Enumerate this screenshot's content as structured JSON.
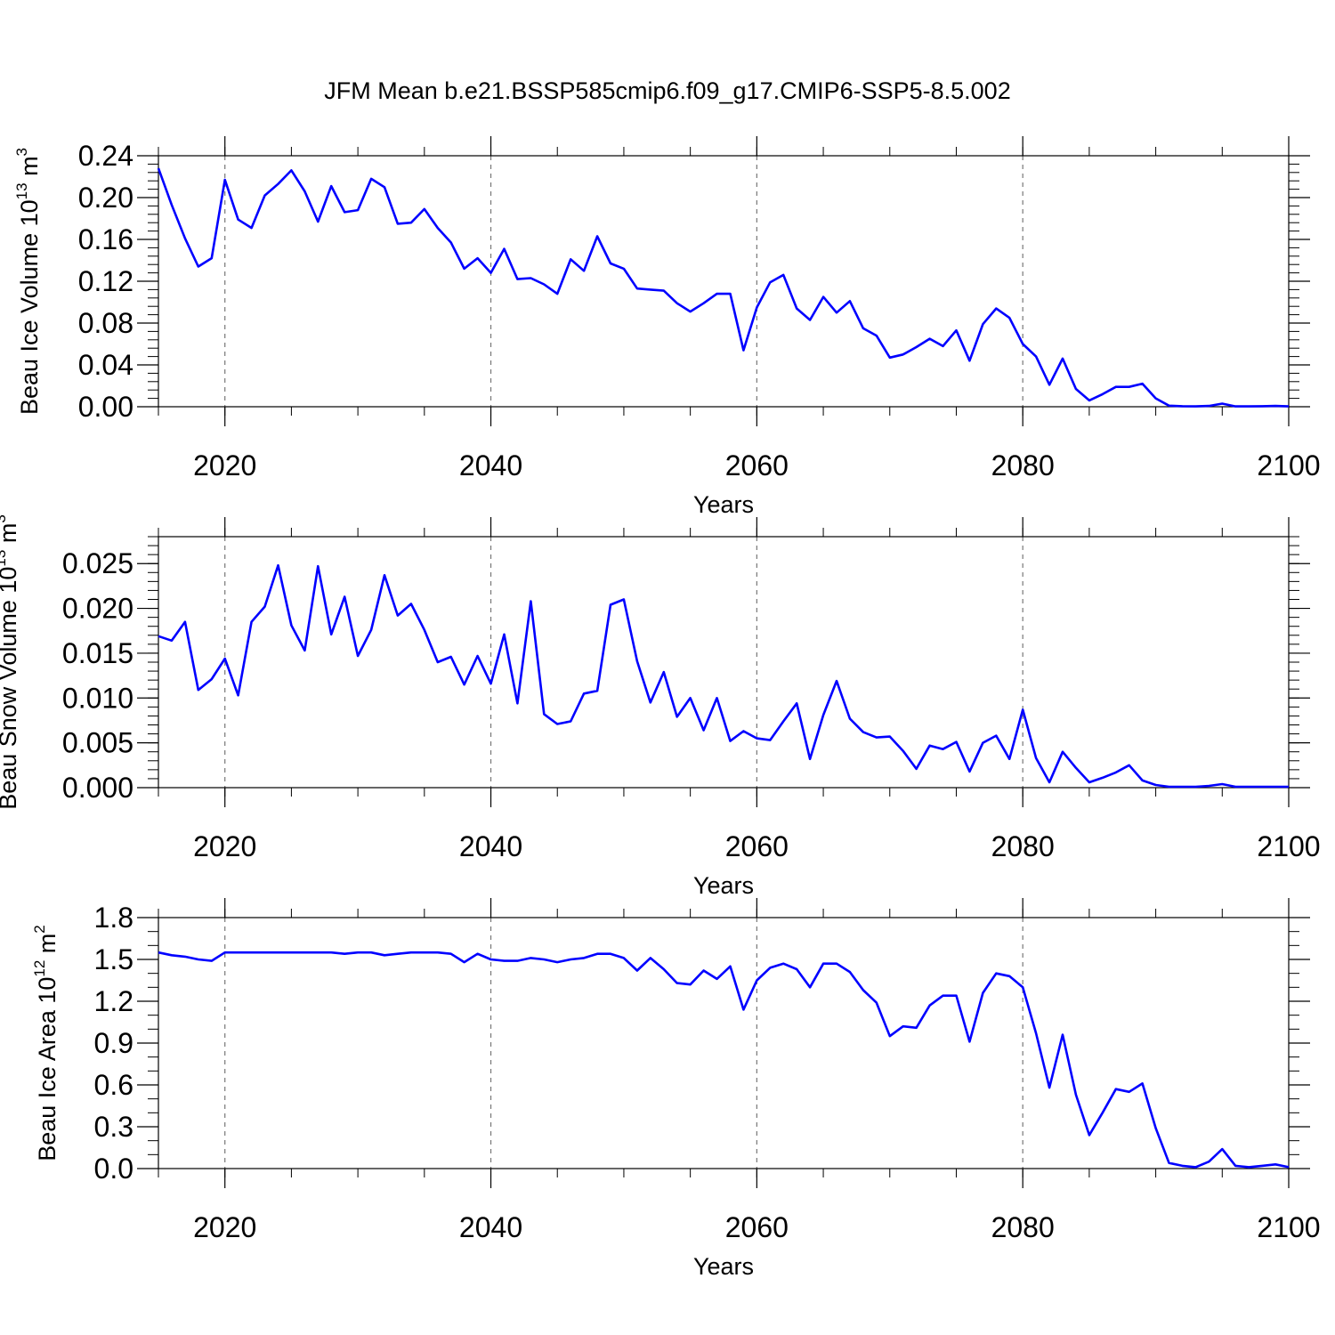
{
  "colors": {
    "series": "#0000ff",
    "axis": "#000000",
    "grid": "#777777"
  },
  "chart_data": {
    "title": "JFM Mean b.e21.BSSP585cmip6.f09_g17.CMIP6-SSP5-8.5.002",
    "years_start": 2015,
    "years_end": 2100,
    "panels": [
      {
        "type": "line",
        "ylabel_main": "Beau Ice Volume 10",
        "ylabel_exp": "13",
        "ylabel_unit": " m",
        "ylabel_unit_exp": "3",
        "xlabel": "Years",
        "xlim": [
          2015,
          2100
        ],
        "ylim": [
          0,
          0.24
        ],
        "y_ticks": [
          "0.00",
          "0.04",
          "0.08",
          "0.12",
          "0.16",
          "0.20",
          "0.24"
        ],
        "y_tick_values": [
          0,
          0.04,
          0.08,
          0.12,
          0.16,
          0.2,
          0.24
        ],
        "y_minor_step": 0.008,
        "x_ticks": [
          "2020",
          "2040",
          "2060",
          "2080",
          "2100"
        ],
        "x_tick_values": [
          2020,
          2040,
          2060,
          2080,
          2100
        ],
        "x_grid": [
          2020,
          2040,
          2060,
          2080
        ],
        "values": [
          0.228,
          0.193,
          0.161,
          0.134,
          0.142,
          0.217,
          0.179,
          0.171,
          0.202,
          0.213,
          0.226,
          0.206,
          0.177,
          0.211,
          0.186,
          0.188,
          0.218,
          0.21,
          0.175,
          0.176,
          0.189,
          0.171,
          0.157,
          0.132,
          0.142,
          0.128,
          0.151,
          0.122,
          0.123,
          0.117,
          0.108,
          0.141,
          0.13,
          0.163,
          0.137,
          0.132,
          0.113,
          0.112,
          0.111,
          0.099,
          0.091,
          0.099,
          0.108,
          0.108,
          0.054,
          0.095,
          0.119,
          0.126,
          0.094,
          0.083,
          0.105,
          0.09,
          0.101,
          0.075,
          0.068,
          0.047,
          0.05,
          0.057,
          0.065,
          0.058,
          0.073,
          0.044,
          0.079,
          0.094,
          0.085,
          0.06,
          0.048,
          0.021,
          0.046,
          0.017,
          0.006,
          0.012,
          0.019,
          0.019,
          0.022,
          0.008,
          0.001,
          0.0005,
          0.0003,
          0.0008,
          0.003,
          0.0003,
          0.0003,
          0.0005,
          0.0008,
          0.0003
        ]
      },
      {
        "type": "line",
        "ylabel_main": "Beau Snow Volume 10",
        "ylabel_exp": "13",
        "ylabel_unit": " m",
        "ylabel_unit_exp": "3",
        "xlabel": "Years",
        "xlim": [
          2015,
          2100
        ],
        "ylim": [
          0,
          0.028
        ],
        "y_ticks": [
          "0.000",
          "0.005",
          "0.010",
          "0.015",
          "0.020",
          "0.025"
        ],
        "y_tick_values": [
          0,
          0.005,
          0.01,
          0.015,
          0.02,
          0.025
        ],
        "y_minor_step": 0.001,
        "x_ticks": [
          "2020",
          "2040",
          "2060",
          "2080",
          "2100"
        ],
        "x_tick_values": [
          2020,
          2040,
          2060,
          2080,
          2100
        ],
        "x_grid": [
          2020,
          2040,
          2060,
          2080
        ],
        "values": [
          0.0169,
          0.0164,
          0.0185,
          0.0109,
          0.0121,
          0.0144,
          0.0103,
          0.0185,
          0.0202,
          0.0248,
          0.0181,
          0.0153,
          0.0247,
          0.0171,
          0.0213,
          0.0147,
          0.0176,
          0.0237,
          0.0192,
          0.0205,
          0.0176,
          0.014,
          0.0146,
          0.0115,
          0.0147,
          0.0116,
          0.0171,
          0.0094,
          0.0208,
          0.0082,
          0.0071,
          0.0074,
          0.0105,
          0.0108,
          0.0204,
          0.021,
          0.0141,
          0.0095,
          0.0129,
          0.0079,
          0.01,
          0.0064,
          0.01,
          0.0052,
          0.0063,
          0.0055,
          0.0053,
          0.0074,
          0.0094,
          0.0032,
          0.0081,
          0.0119,
          0.0077,
          0.0062,
          0.0056,
          0.0057,
          0.0041,
          0.0021,
          0.0047,
          0.0043,
          0.0051,
          0.0018,
          0.005,
          0.0058,
          0.0032,
          0.0087,
          0.0033,
          0.0006,
          0.004,
          0.0022,
          0.0006,
          0.0011,
          0.0017,
          0.0025,
          0.0008,
          0.0003,
          0.0001,
          0.0001,
          0.0001,
          0.0002,
          0.0004,
          0.0001,
          0.0001,
          0.0001,
          0.0001,
          0.0001
        ]
      },
      {
        "type": "line",
        "ylabel_main": "Beau Ice Area 10",
        "ylabel_exp": "12",
        "ylabel_unit": " m",
        "ylabel_unit_exp": "2",
        "xlabel": "Years",
        "xlim": [
          2015,
          2100
        ],
        "ylim": [
          0,
          1.8
        ],
        "y_ticks": [
          "0.0",
          "0.3",
          "0.6",
          "0.9",
          "1.2",
          "1.5",
          "1.8"
        ],
        "y_tick_values": [
          0,
          0.3,
          0.6,
          0.9,
          1.2,
          1.5,
          1.8
        ],
        "y_minor_step": 0.1,
        "x_ticks": [
          "2020",
          "2040",
          "2060",
          "2080",
          "2100"
        ],
        "x_tick_values": [
          2020,
          2040,
          2060,
          2080,
          2100
        ],
        "x_grid": [
          2020,
          2040,
          2060,
          2080
        ],
        "values": [
          1.55,
          1.53,
          1.52,
          1.5,
          1.49,
          1.55,
          1.55,
          1.55,
          1.55,
          1.55,
          1.55,
          1.55,
          1.55,
          1.55,
          1.54,
          1.55,
          1.55,
          1.53,
          1.54,
          1.55,
          1.55,
          1.55,
          1.54,
          1.48,
          1.54,
          1.5,
          1.49,
          1.49,
          1.51,
          1.5,
          1.48,
          1.5,
          1.51,
          1.54,
          1.54,
          1.51,
          1.42,
          1.51,
          1.43,
          1.33,
          1.32,
          1.42,
          1.36,
          1.45,
          1.14,
          1.35,
          1.44,
          1.47,
          1.43,
          1.3,
          1.47,
          1.47,
          1.41,
          1.28,
          1.19,
          0.95,
          1.02,
          1.01,
          1.17,
          1.24,
          1.24,
          0.91,
          1.26,
          1.4,
          1.38,
          1.3,
          0.97,
          0.58,
          0.96,
          0.53,
          0.24,
          0.4,
          0.57,
          0.55,
          0.61,
          0.29,
          0.04,
          0.02,
          0.01,
          0.05,
          0.14,
          0.02,
          0.01,
          0.02,
          0.03,
          0.01
        ]
      }
    ]
  }
}
